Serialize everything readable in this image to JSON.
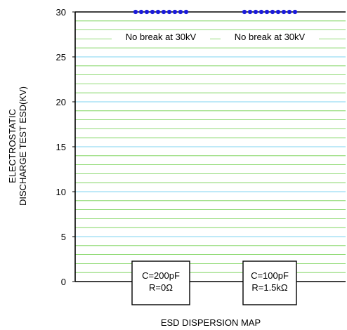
{
  "chart_data": {
    "type": "scatter",
    "title": "",
    "xlabel": "ESD DISPERSION MAP",
    "ylabel_lines": [
      "ELECTROSTATIC",
      "DISCHARGE TEST ESD(KV)"
    ],
    "ylim": [
      0,
      30
    ],
    "yticks": [
      0,
      5,
      10,
      15,
      20,
      25,
      30
    ],
    "grid": true,
    "groups": [
      {
        "condition_lines": [
          "C=200pF",
          "R=0Ω"
        ],
        "annotation": "No break at 30kV",
        "values": [
          30,
          30,
          30,
          30,
          30,
          30,
          30,
          30,
          30,
          30
        ]
      },
      {
        "condition_lines": [
          "C=100pF",
          "R=1.5kΩ"
        ],
        "annotation": "No break at 30kV",
        "values": [
          30,
          30,
          30,
          30,
          30,
          30,
          30,
          30,
          30,
          30
        ]
      }
    ],
    "colors": {
      "points": "#1a1adc",
      "major_grid": "#7fd3f0",
      "minor_grid": "#6fcf4a",
      "axis": "#000000"
    }
  }
}
